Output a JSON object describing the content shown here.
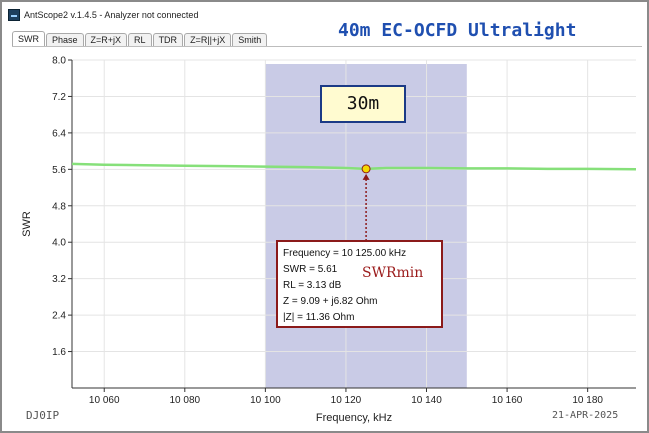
{
  "window": {
    "title": "AntScope2 v.1.4.5 - Analyzer not connected",
    "banner": "40m EC-OCFD Ultralight"
  },
  "tabs": [
    "SWR",
    "Phase",
    "Z=R+jX",
    "RL",
    "TDR",
    "Z=R||+jX",
    "Smith"
  ],
  "active_tab": 0,
  "overlay": {
    "band_label": "30m",
    "annotation": "SWRmin",
    "readout": [
      "Frequency = 10 125.00 kHz",
      "SWR = 5.61",
      "RL = 3.13 dB",
      "Z = 9.09 + j6.82 Ohm",
      "|Z| = 11.36 Ohm"
    ]
  },
  "footer": {
    "left": "DJ0IP",
    "right": "21-APR-2025"
  },
  "colors": {
    "trace": "#86e07a",
    "band_fill": "#c9cbe6",
    "marker": "#f5d800",
    "marker_line": "#8b1a1a"
  },
  "chart_data": {
    "type": "line",
    "xlabel": "Frequency, kHz",
    "ylabel": "SWR",
    "xlim": [
      10052,
      10192
    ],
    "ylim": [
      0.8,
      8.0
    ],
    "x_ticks": [
      10060,
      10080,
      10100,
      10120,
      10140,
      10160,
      10180
    ],
    "x_tick_labels": [
      "10 060",
      "10 080",
      "10 100",
      "10 120",
      "10 140",
      "10 160",
      "10 180"
    ],
    "y_ticks": [
      1.6,
      2.4,
      3.2,
      4.0,
      4.8,
      5.6,
      6.4,
      7.2,
      8.0
    ],
    "y_tick_labels": [
      "1.6",
      "2.4",
      "3.2",
      "4.0",
      "4.8",
      "5.6",
      "6.4",
      "7.2",
      "8.0"
    ],
    "band_range": [
      10100,
      10150
    ],
    "marker": {
      "x": 10125,
      "y": 5.61
    },
    "series": [
      {
        "x": [
          10052,
          10060,
          10070,
          10080,
          10090,
          10100,
          10110,
          10120,
          10125,
          10130,
          10140,
          10150,
          10160,
          10170,
          10180,
          10192
        ],
        "values": [
          5.72,
          5.7,
          5.69,
          5.68,
          5.67,
          5.66,
          5.65,
          5.63,
          5.61,
          5.63,
          5.63,
          5.62,
          5.62,
          5.61,
          5.61,
          5.6
        ]
      }
    ]
  }
}
